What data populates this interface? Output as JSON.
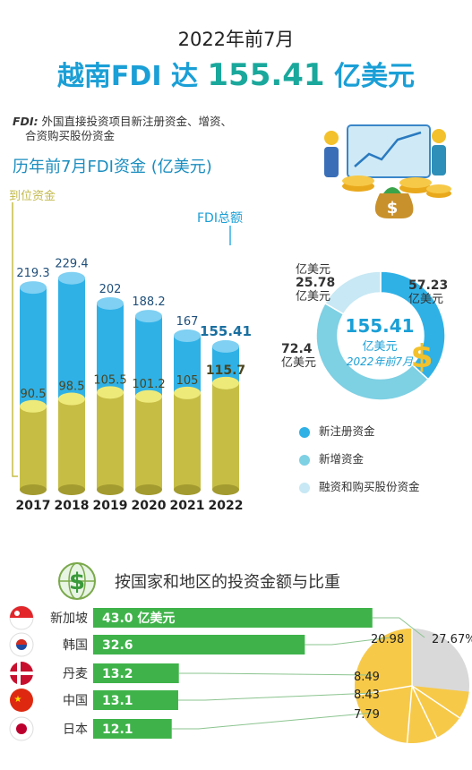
{
  "header": {
    "top_title": "2022年前7月",
    "headline_label": "越南FDI 达 ",
    "headline_value": "155.41",
    "headline_unit": " 亿美元"
  },
  "note": {
    "key": "FDI:",
    "line1": " 外国直接投资项目新注册资金、增资、",
    "line2": "合资购买股份资金"
  },
  "section1": {
    "title": "历年前7月FDI资金 (亿美元)",
    "arrival_label": "到位资金",
    "total_label": "FDI总额"
  },
  "chart_data": [
    {
      "type": "bar",
      "title": "历年前7月FDI资金 (亿美元)",
      "categories": [
        "2017",
        "2018",
        "2019",
        "2020",
        "2021",
        "2022"
      ],
      "series": [
        {
          "name": "FDI总额",
          "values": [
            219.3,
            229.4,
            202,
            188.2,
            167,
            155.41
          ],
          "labels": [
            "219.3",
            "229.4",
            "202",
            "188.2",
            "167",
            "155.41"
          ]
        },
        {
          "name": "到位资金",
          "values": [
            90.5,
            98.5,
            105.5,
            101.2,
            105,
            115.7
          ],
          "labels": [
            "90.5",
            "98.5",
            "105.5",
            "101.2",
            "105",
            "115.7"
          ]
        }
      ],
      "colors": {
        "total": "#2fb1e6",
        "arrival": "#c6bd45"
      }
    },
    {
      "type": "pie",
      "center_value": "155.41",
      "center_unit": "亿美元",
      "center_caption": "2022年前7月",
      "slices": [
        {
          "name": "新注册资金",
          "value": 57.23,
          "label": "57.23",
          "unit": "亿美元",
          "color": "#2fb1e6"
        },
        {
          "name": "新增资金",
          "value": 72.4,
          "label": "72.4",
          "unit": "亿美元",
          "color": "#7ed0e3"
        },
        {
          "name": "融资和购买股份资金",
          "value": 25.78,
          "label": "25.78",
          "unit": "亿美元",
          "color": "#c7e8f4"
        }
      ]
    },
    {
      "type": "bar",
      "title": "按国家和地区的投资金额与比重",
      "categories": [
        "新加坡",
        "韩国",
        "丹麦",
        "中国",
        "日本"
      ],
      "values": [
        43.0,
        32.6,
        13.2,
        13.1,
        12.1
      ],
      "value_labels": [
        "43.0 亿美元",
        "32.6",
        "13.2",
        "13.1",
        "12.1"
      ],
      "shares": [
        27.67,
        20.98,
        8.49,
        8.43,
        7.79
      ],
      "share_labels": [
        "27.67%",
        "20.98",
        "8.49",
        "8.43",
        "7.79"
      ],
      "colors": {
        "bar": "#3fb34a",
        "pie_main": "#f7c948",
        "pie_rest": "#d9d9d9"
      }
    }
  ],
  "section2": {
    "title": "按国家和地区的投资金额与比重"
  }
}
